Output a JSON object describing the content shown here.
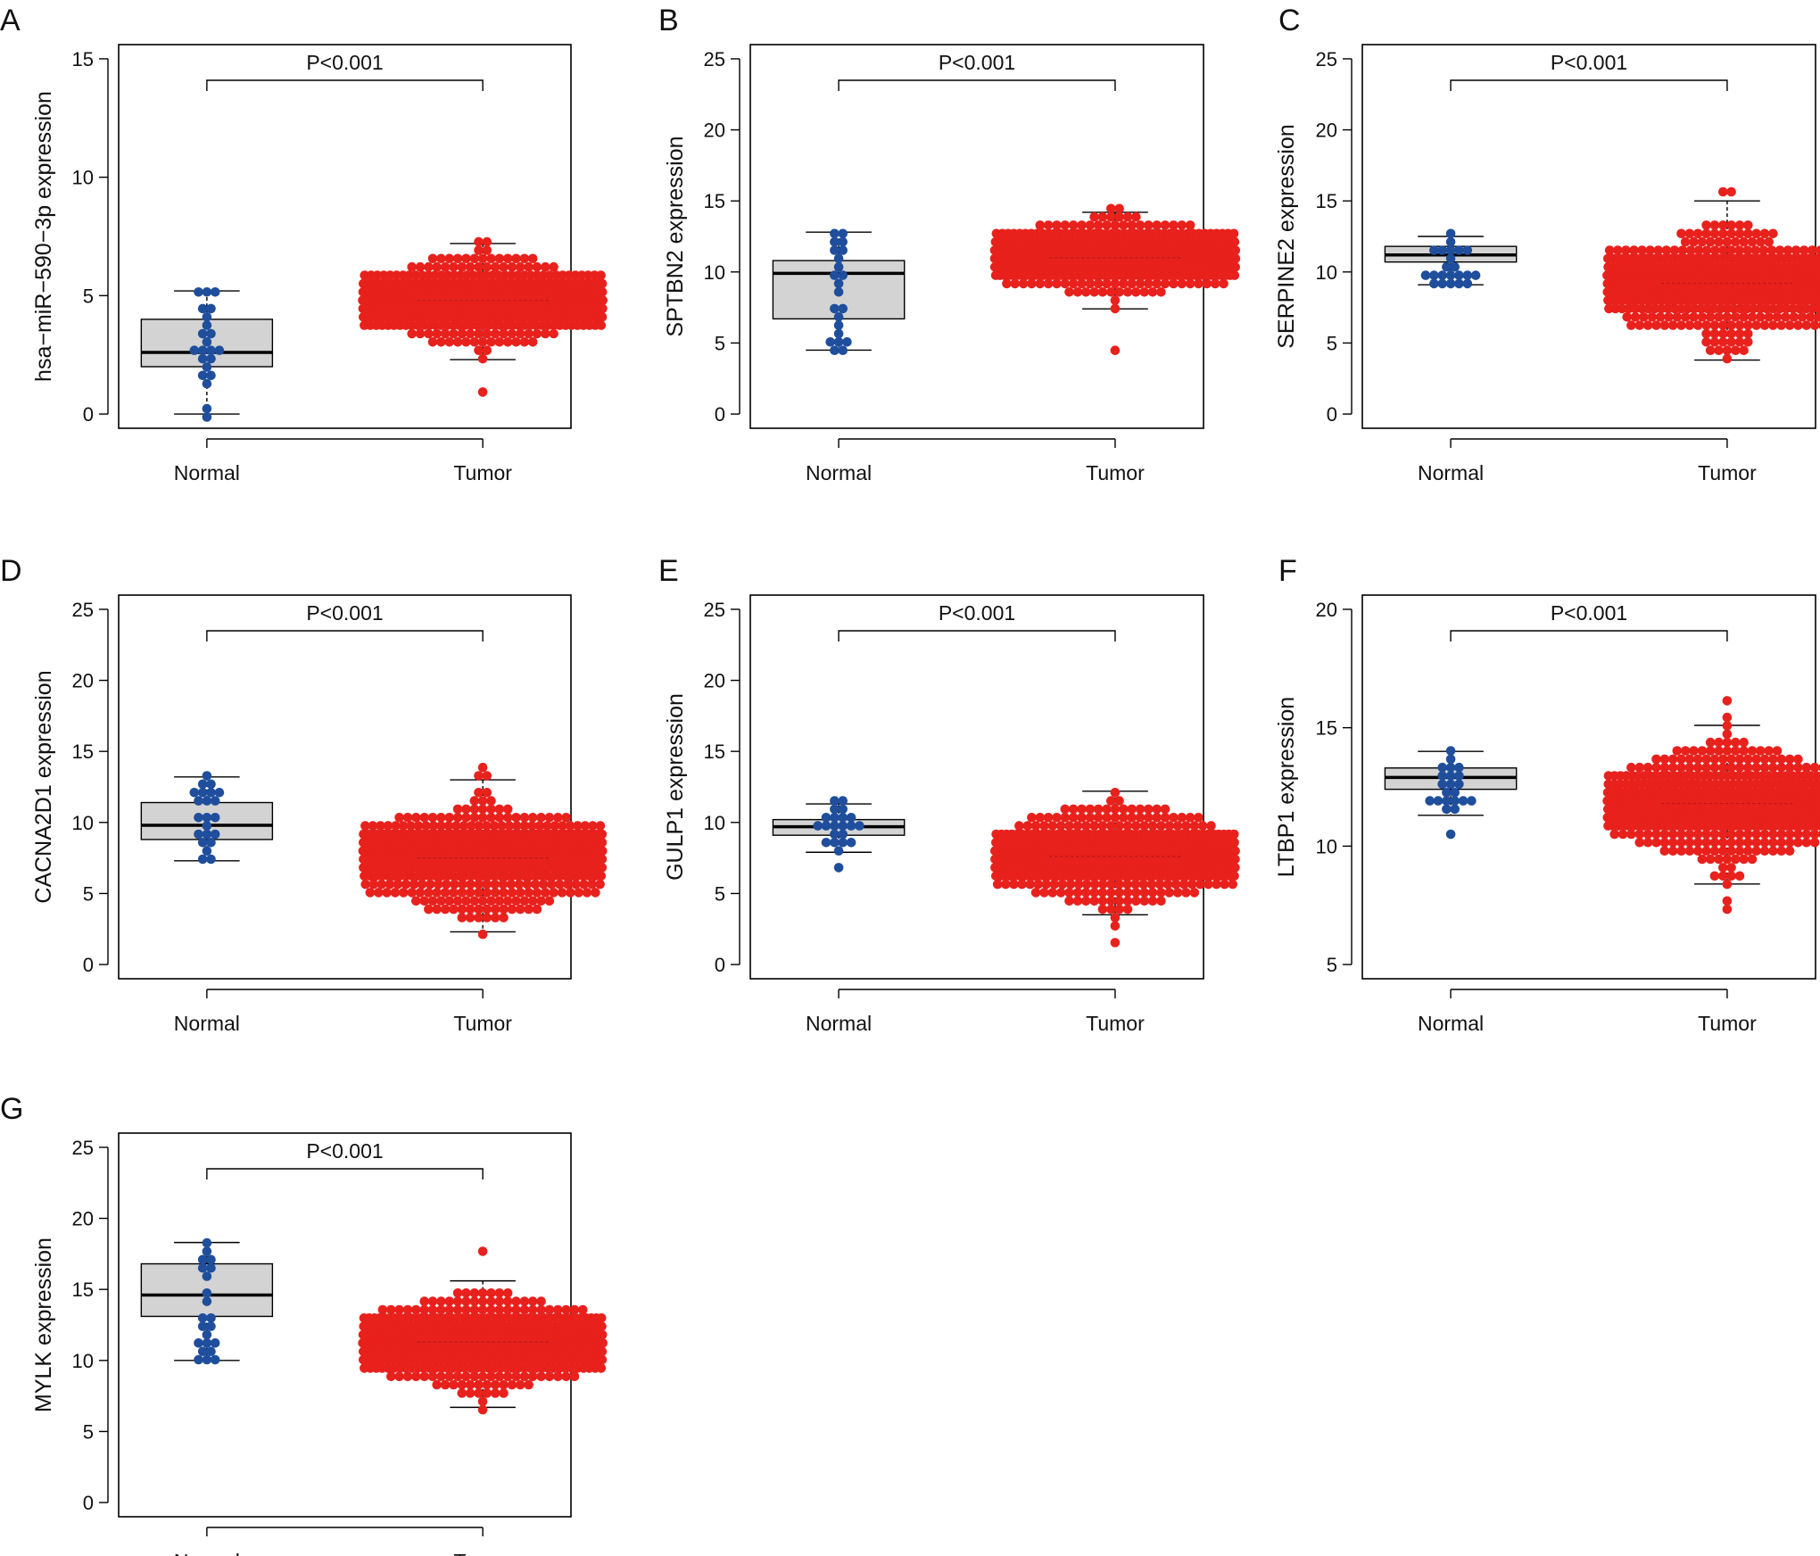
{
  "figure": {
    "panels": [
      {
        "letter": "A",
        "ylabel": "hsa−miR−590−3p expression",
        "categories": [
          "Normal",
          "Tumor"
        ],
        "pvalue": "P<0.001"
      },
      {
        "letter": "B",
        "ylabel": "SPTBN2 expression",
        "categories": [
          "Normal",
          "Tumor"
        ],
        "pvalue": "P<0.001"
      },
      {
        "letter": "C",
        "ylabel": "SERPINE2 expression",
        "categories": [
          "Normal",
          "Tumor"
        ],
        "pvalue": "P<0.001"
      },
      {
        "letter": "D",
        "ylabel": "CACNA2D1 expression",
        "categories": [
          "Normal",
          "Tumor"
        ],
        "pvalue": "P<0.001"
      },
      {
        "letter": "E",
        "ylabel": "GULP1 expression",
        "categories": [
          "Normal",
          "Tumor"
        ],
        "pvalue": "P<0.001"
      },
      {
        "letter": "F",
        "ylabel": "LTBP1 expression",
        "categories": [
          "Normal",
          "Tumor"
        ],
        "pvalue": "P<0.001"
      },
      {
        "letter": "G",
        "ylabel": "MYLK expression",
        "categories": [
          "Normal",
          "Tumor"
        ],
        "pvalue": "P<0.001"
      }
    ]
  },
  "colors": {
    "normal_points": "#1f4e9c",
    "tumor_points": "#e8211d",
    "box_fill": "#d3d3d3",
    "axis": "#000000"
  },
  "chart_data": [
    {
      "type": "box",
      "panel": "A",
      "ylabel": "hsa−miR−590−3p expression",
      "categories": [
        "Normal",
        "Tumor"
      ],
      "ylim": [
        0,
        15
      ],
      "yticks": [
        0,
        5,
        10,
        15
      ],
      "pvalue": "P<0.001",
      "groups": [
        {
          "name": "Normal",
          "whisker_low": 0.0,
          "q1": 2.0,
          "median": 2.6,
          "q3": 4.0,
          "whisker_high": 5.2,
          "n_points": 22,
          "point_min": 0.0,
          "point_max": 5.2
        },
        {
          "name": "Tumor",
          "whisker_low": 2.3,
          "q1": 4.2,
          "median": 4.8,
          "q3": 5.3,
          "whisker_high": 7.2,
          "n_points": 520,
          "point_min": 1.0,
          "point_max": 7.2
        }
      ]
    },
    {
      "type": "box",
      "panel": "B",
      "ylabel": "SPTBN2 expression",
      "categories": [
        "Normal",
        "Tumor"
      ],
      "ylim": [
        0,
        25
      ],
      "yticks": [
        0,
        5,
        10,
        15,
        20,
        25
      ],
      "pvalue": "P<0.001",
      "groups": [
        {
          "name": "Normal",
          "whisker_low": 4.5,
          "q1": 6.7,
          "median": 9.9,
          "q3": 10.8,
          "whisker_high": 12.8,
          "n_points": 22,
          "point_min": 4.5,
          "point_max": 12.8
        },
        {
          "name": "Tumor",
          "whisker_low": 7.4,
          "q1": 10.3,
          "median": 11.0,
          "q3": 11.8,
          "whisker_high": 14.2,
          "n_points": 520,
          "point_min": 4.4,
          "point_max": 14.7
        }
      ]
    },
    {
      "type": "box",
      "panel": "C",
      "ylabel": "SERPINE2 expression",
      "categories": [
        "Normal",
        "Tumor"
      ],
      "ylim": [
        0,
        25
      ],
      "yticks": [
        0,
        5,
        10,
        15,
        20,
        25
      ],
      "pvalue": "P<0.001",
      "groups": [
        {
          "name": "Normal",
          "whisker_low": 9.1,
          "q1": 10.7,
          "median": 11.2,
          "q3": 11.8,
          "whisker_high": 12.5,
          "n_points": 22,
          "point_min": 9.1,
          "point_max": 12.5
        },
        {
          "name": "Tumor",
          "whisker_low": 3.8,
          "q1": 7.9,
          "median": 9.2,
          "q3": 10.4,
          "whisker_high": 15.0,
          "n_points": 520,
          "point_min": 3.8,
          "point_max": 15.6
        }
      ]
    },
    {
      "type": "box",
      "panel": "D",
      "ylabel": "CACNA2D1 expression",
      "categories": [
        "Normal",
        "Tumor"
      ],
      "ylim": [
        0,
        25
      ],
      "yticks": [
        0,
        5,
        10,
        15,
        20,
        25
      ],
      "pvalue": "P<0.001",
      "groups": [
        {
          "name": "Normal",
          "whisker_low": 7.3,
          "q1": 8.8,
          "median": 9.8,
          "q3": 11.4,
          "whisker_high": 13.2,
          "n_points": 22,
          "point_min": 7.3,
          "point_max": 13.2
        },
        {
          "name": "Tumor",
          "whisker_low": 2.3,
          "q1": 6.3,
          "median": 7.5,
          "q3": 8.8,
          "whisker_high": 13.0,
          "n_points": 520,
          "point_min": 2.1,
          "point_max": 13.7
        }
      ]
    },
    {
      "type": "box",
      "panel": "E",
      "ylabel": "GULP1 expression",
      "categories": [
        "Normal",
        "Tumor"
      ],
      "ylim": [
        0,
        25
      ],
      "yticks": [
        0,
        5,
        10,
        15,
        20,
        25
      ],
      "pvalue": "P<0.001",
      "groups": [
        {
          "name": "Normal",
          "whisker_low": 7.9,
          "q1": 9.1,
          "median": 9.7,
          "q3": 10.2,
          "whisker_high": 11.3,
          "n_points": 22,
          "point_min": 7.1,
          "point_max": 11.3
        },
        {
          "name": "Tumor",
          "whisker_low": 3.5,
          "q1": 6.5,
          "median": 7.6,
          "q3": 8.6,
          "whisker_high": 12.2,
          "n_points": 520,
          "point_min": 1.6,
          "point_max": 12.2
        }
      ]
    },
    {
      "type": "box",
      "panel": "F",
      "ylabel": "LTBP1 expression",
      "categories": [
        "Normal",
        "Tumor"
      ],
      "ylim": [
        5,
        20
      ],
      "yticks": [
        5,
        10,
        15,
        20
      ],
      "pvalue": "P<0.001",
      "groups": [
        {
          "name": "Normal",
          "whisker_low": 11.3,
          "q1": 12.4,
          "median": 12.9,
          "q3": 13.3,
          "whisker_high": 14.0,
          "n_points": 22,
          "point_min": 10.4,
          "point_max": 14.0
        },
        {
          "name": "Tumor",
          "whisker_low": 8.4,
          "q1": 11.0,
          "median": 11.8,
          "q3": 12.6,
          "whisker_high": 15.1,
          "n_points": 520,
          "point_min": 7.5,
          "point_max": 16.1
        }
      ]
    },
    {
      "type": "box",
      "panel": "G",
      "ylabel": "MYLK expression",
      "categories": [
        "Normal",
        "Tumor"
      ],
      "ylim": [
        0,
        25
      ],
      "yticks": [
        0,
        5,
        10,
        15,
        20,
        25
      ],
      "pvalue": "P<0.001",
      "groups": [
        {
          "name": "Normal",
          "whisker_low": 10.0,
          "q1": 13.1,
          "median": 14.6,
          "q3": 16.8,
          "whisker_high": 18.3,
          "n_points": 22,
          "point_min": 10.0,
          "point_max": 18.3
        },
        {
          "name": "Tumor",
          "whisker_low": 6.7,
          "q1": 10.2,
          "median": 11.3,
          "q3": 12.3,
          "whisker_high": 15.6,
          "n_points": 520,
          "point_min": 6.5,
          "point_max": 17.5
        }
      ]
    }
  ]
}
